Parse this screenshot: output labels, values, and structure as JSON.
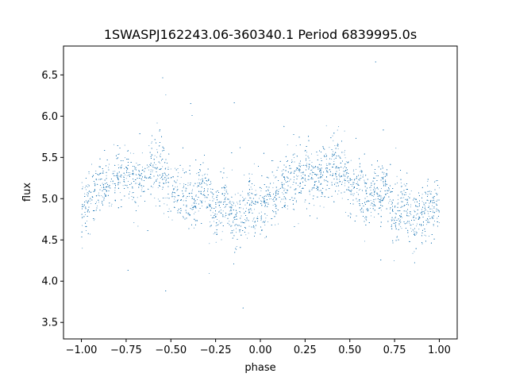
{
  "chart_data": {
    "type": "scatter",
    "title": "1SWASPJ162243.06-360340.1 Period 6839995.0s",
    "xlabel": "phase",
    "ylabel": "flux",
    "xlim": [
      -1.1,
      1.1
    ],
    "ylim": [
      3.3,
      6.85
    ],
    "x_ticks": [
      -1.0,
      -0.75,
      -0.5,
      -0.25,
      0.0,
      0.25,
      0.5,
      0.75,
      1.0
    ],
    "x_tick_labels": [
      "−1.00",
      "−0.75",
      "−0.50",
      "−0.25",
      "0.00",
      "0.25",
      "0.50",
      "0.75",
      "1.00"
    ],
    "y_ticks": [
      3.5,
      4.0,
      4.5,
      5.0,
      5.5,
      6.0,
      6.5
    ],
    "y_tick_labels": [
      "3.5",
      "4.0",
      "4.5",
      "5.0",
      "5.5",
      "6.0",
      "6.5"
    ],
    "grid": false,
    "point_color": "#1f77b4",
    "phase_profile": {
      "phase": [
        0.0,
        0.05,
        0.1,
        0.15,
        0.2,
        0.25,
        0.3,
        0.35,
        0.4,
        0.45,
        0.5,
        0.55,
        0.6,
        0.65,
        0.7,
        0.75,
        0.8,
        0.85,
        0.9,
        0.95,
        1.0
      ],
      "median_flux": [
        4.9,
        5.0,
        5.1,
        5.2,
        5.25,
        5.3,
        5.2,
        5.3,
        5.4,
        5.35,
        5.15,
        5.1,
        5.0,
        5.05,
        5.15,
        4.75,
        5.0,
        4.7,
        4.8,
        4.95,
        4.9
      ]
    },
    "flux_range": [
      3.45,
      6.8
    ]
  }
}
